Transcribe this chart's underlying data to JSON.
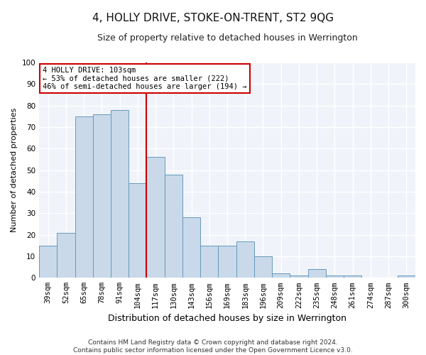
{
  "title": "4, HOLLY DRIVE, STOKE-ON-TRENT, ST2 9QG",
  "subtitle": "Size of property relative to detached houses in Werrington",
  "xlabel": "Distribution of detached houses by size in Werrington",
  "ylabel": "Number of detached properties",
  "categories": [
    "39sqm",
    "52sqm",
    "65sqm",
    "78sqm",
    "91sqm",
    "104sqm",
    "117sqm",
    "130sqm",
    "143sqm",
    "156sqm",
    "169sqm",
    "183sqm",
    "196sqm",
    "209sqm",
    "222sqm",
    "235sqm",
    "248sqm",
    "261sqm",
    "274sqm",
    "287sqm",
    "300sqm"
  ],
  "values": [
    15,
    21,
    75,
    76,
    78,
    44,
    56,
    48,
    28,
    15,
    15,
    17,
    10,
    2,
    1,
    4,
    1,
    1,
    0,
    0,
    1
  ],
  "bar_color": "#c9d9ea",
  "bar_edge_color": "#6699bb",
  "vline_color": "#cc0000",
  "vline_position": 5.5,
  "ylim": [
    0,
    100
  ],
  "yticks": [
    0,
    10,
    20,
    30,
    40,
    50,
    60,
    70,
    80,
    90,
    100
  ],
  "annotation_text": "4 HOLLY DRIVE: 103sqm\n← 53% of detached houses are smaller (222)\n46% of semi-detached houses are larger (194) →",
  "annotation_box_color": "#ffffff",
  "annotation_box_edge": "#cc0000",
  "footer_text": "Contains HM Land Registry data © Crown copyright and database right 2024.\nContains public sector information licensed under the Open Government Licence v3.0.",
  "background_color": "#f0f4fa",
  "grid_color": "#ffffff",
  "title_fontsize": 11,
  "subtitle_fontsize": 9,
  "xlabel_fontsize": 9,
  "ylabel_fontsize": 8,
  "tick_fontsize": 7.5,
  "annotation_fontsize": 7.5,
  "footer_fontsize": 6.5
}
